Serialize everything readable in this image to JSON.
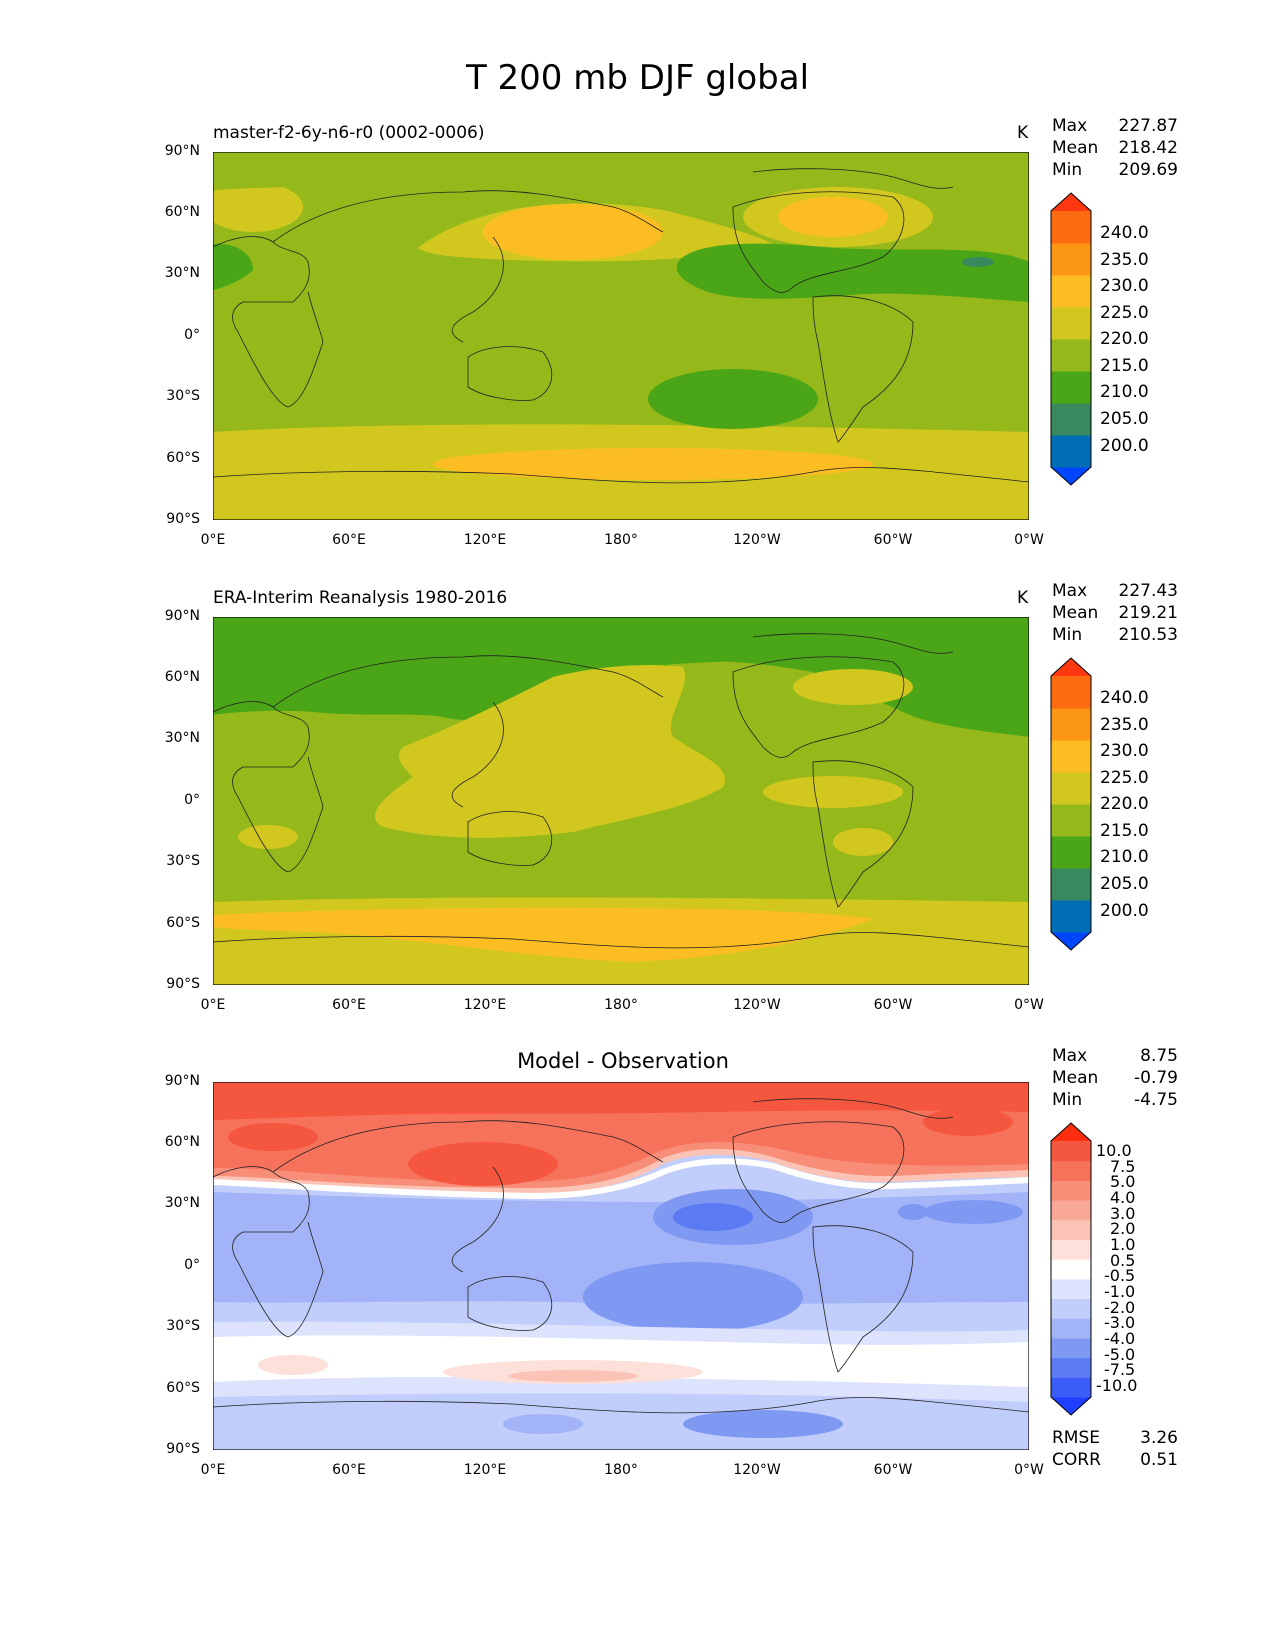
{
  "figure_title": "T 200 mb DJF global",
  "x_ticks": [
    "0°E",
    "60°E",
    "120°E",
    "180°",
    "120°W",
    "60°W",
    "0°W"
  ],
  "y_ticks": [
    "90°N",
    "60°N",
    "30°N",
    "0°",
    "30°S",
    "60°S",
    "90°S"
  ],
  "colors": {
    "abs_levels": [
      "#0046ff",
      "#006db5",
      "#388a5e",
      "#4aa616",
      "#95b81a",
      "#d2c71f",
      "#fbbd21",
      "#fc9615",
      "#fc6a11",
      "#ff3810"
    ],
    "diff_levels": [
      "#1e3fff",
      "#3b5cf6",
      "#5c7af2",
      "#7f99f3",
      "#a2b3f7",
      "#c1cdfa",
      "#dde3fc",
      "#ffffff",
      "#fde0da",
      "#fbc3b6",
      "#f9a897",
      "#f88d78",
      "#f6725b",
      "#f5563f",
      "#ff2d10"
    ],
    "coastline": "#222222"
  },
  "panels": [
    {
      "title": "master-f2-6y-n6-r0 (0002-0006)",
      "units": "K",
      "stats": [
        {
          "label": "Max",
          "value": "227.87"
        },
        {
          "label": "Mean",
          "value": "218.42"
        },
        {
          "label": "Min",
          "value": "209.69"
        }
      ],
      "colorbar_labels": [
        "240.0",
        "235.0",
        "230.0",
        "225.0",
        "220.0",
        "215.0",
        "210.0",
        "205.0",
        "200.0"
      ]
    },
    {
      "title": "ERA-Interim Reanalysis 1980-2016",
      "units": "K",
      "stats": [
        {
          "label": "Max",
          "value": "227.43"
        },
        {
          "label": "Mean",
          "value": "219.21"
        },
        {
          "label": "Min",
          "value": "210.53"
        }
      ],
      "colorbar_labels": [
        "240.0",
        "235.0",
        "230.0",
        "225.0",
        "220.0",
        "215.0",
        "210.0",
        "205.0",
        "200.0"
      ]
    },
    {
      "title": "Model - Observation",
      "units": "",
      "stats": [
        {
          "label": "Max",
          "value": "8.75"
        },
        {
          "label": "Mean",
          "value": "-0.79"
        },
        {
          "label": "Min",
          "value": "-4.75"
        }
      ],
      "colorbar_labels": [
        "10.0",
        "7.5",
        "5.0",
        "4.0",
        "3.0",
        "2.0",
        "1.0",
        "0.5",
        "-0.5",
        "-1.0",
        "-2.0",
        "-3.0",
        "-4.0",
        "-5.0",
        "-7.5",
        "-10.0"
      ],
      "metrics": [
        {
          "label": "RMSE",
          "value": "3.26"
        },
        {
          "label": "CORR",
          "value": "0.51"
        }
      ]
    }
  ]
}
